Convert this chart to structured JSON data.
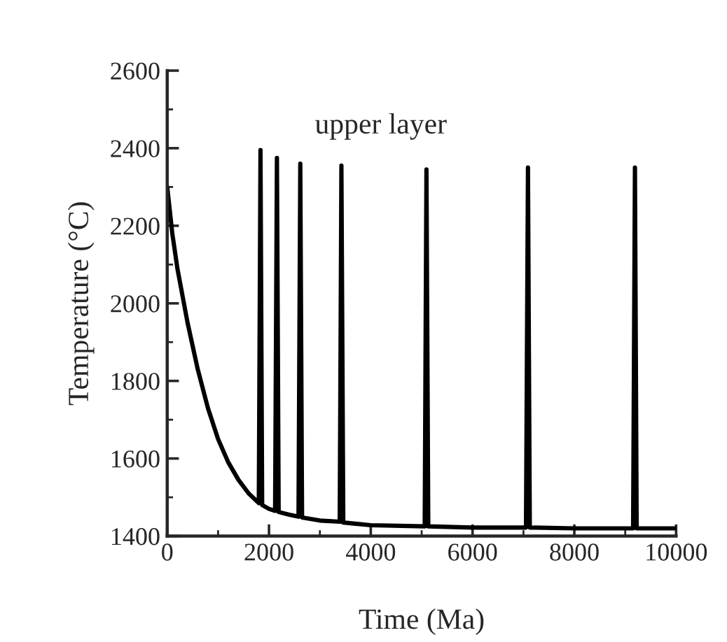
{
  "chart_data": {
    "type": "line",
    "xlabel": "Time (Ma)",
    "ylabel": "Temperature (°C)",
    "annotations": [
      "upper layer"
    ],
    "xlim": [
      0,
      10000
    ],
    "ylim": [
      1400,
      2600
    ],
    "xticks": [
      0,
      2000,
      4000,
      6000,
      8000,
      10000
    ],
    "yticks": [
      1400,
      1600,
      1800,
      2000,
      2200,
      2400,
      2600
    ],
    "grid": false,
    "marker": "none",
    "line_style": "solid",
    "series": [
      {
        "color": "#000000",
        "x": [
          0,
          100,
          200,
          400,
          600,
          800,
          1000,
          1200,
          1400,
          1600,
          1800,
          1833,
          1866,
          2000,
          2120,
          2156,
          2190,
          2400,
          2580,
          2615,
          2650,
          3000,
          3390,
          3423,
          3460,
          4000,
          5060,
          5094,
          5130,
          6000,
          7050,
          7089,
          7125,
          8000,
          9155,
          9191,
          9225,
          10000
        ],
        "values": [
          2300,
          2180,
          2090,
          1950,
          1830,
          1730,
          1650,
          1590,
          1545,
          1510,
          1485,
          2395,
          1480,
          1470,
          1465,
          2375,
          1462,
          1455,
          1450,
          2360,
          1448,
          1440,
          1437,
          2355,
          1435,
          1428,
          1425,
          2345,
          1425,
          1422,
          1422,
          2350,
          1422,
          1420,
          1420,
          2350,
          1420,
          1420
        ]
      }
    ]
  }
}
